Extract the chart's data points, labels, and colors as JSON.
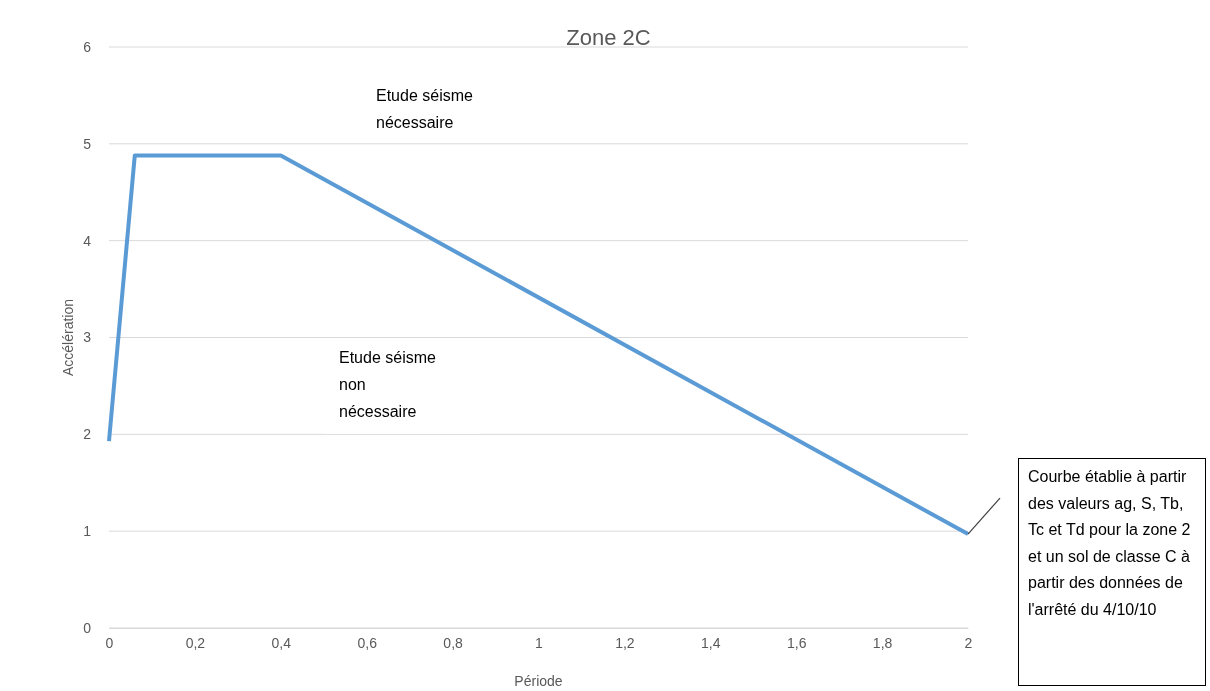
{
  "chart_data": {
    "type": "line",
    "title": "Zone 2C",
    "xlabel": "Période",
    "ylabel": "Accélération",
    "x": [
      0,
      0.06,
      0.4,
      2
    ],
    "series": [
      {
        "color": "#5b9bd5",
        "values": [
          1.93,
          4.88,
          4.88,
          0.97
        ]
      }
    ],
    "xlim": [
      0,
      2
    ],
    "xticks": [
      0,
      {
        "value": 0.2,
        "label": "0,2"
      },
      {
        "value": 0.4,
        "label": "0,4"
      },
      {
        "value": 0.6,
        "label": "0,6"
      },
      {
        "value": 0.8,
        "label": "0,8"
      },
      1,
      {
        "value": 1.2,
        "label": "1,2"
      },
      {
        "value": 1.4,
        "label": "1,4"
      },
      {
        "value": 1.6,
        "label": "1,6"
      },
      {
        "value": 1.8,
        "label": "1,8"
      },
      2
    ],
    "ylim": [
      0,
      6
    ],
    "yticks": [
      0,
      1,
      2,
      3,
      4,
      5,
      6
    ],
    "grid": "y",
    "marker": "none",
    "line_style": "solid",
    "annotations": [
      "Etude séisme nécessaire",
      "Etude séisme non nécessaire",
      "Courbe établie à partir des valeurs ag, S, Tb, Tc et Td pour la zone 2 et un sol de classe C à partir des données de l'arrêté du 4/10/10"
    ]
  }
}
